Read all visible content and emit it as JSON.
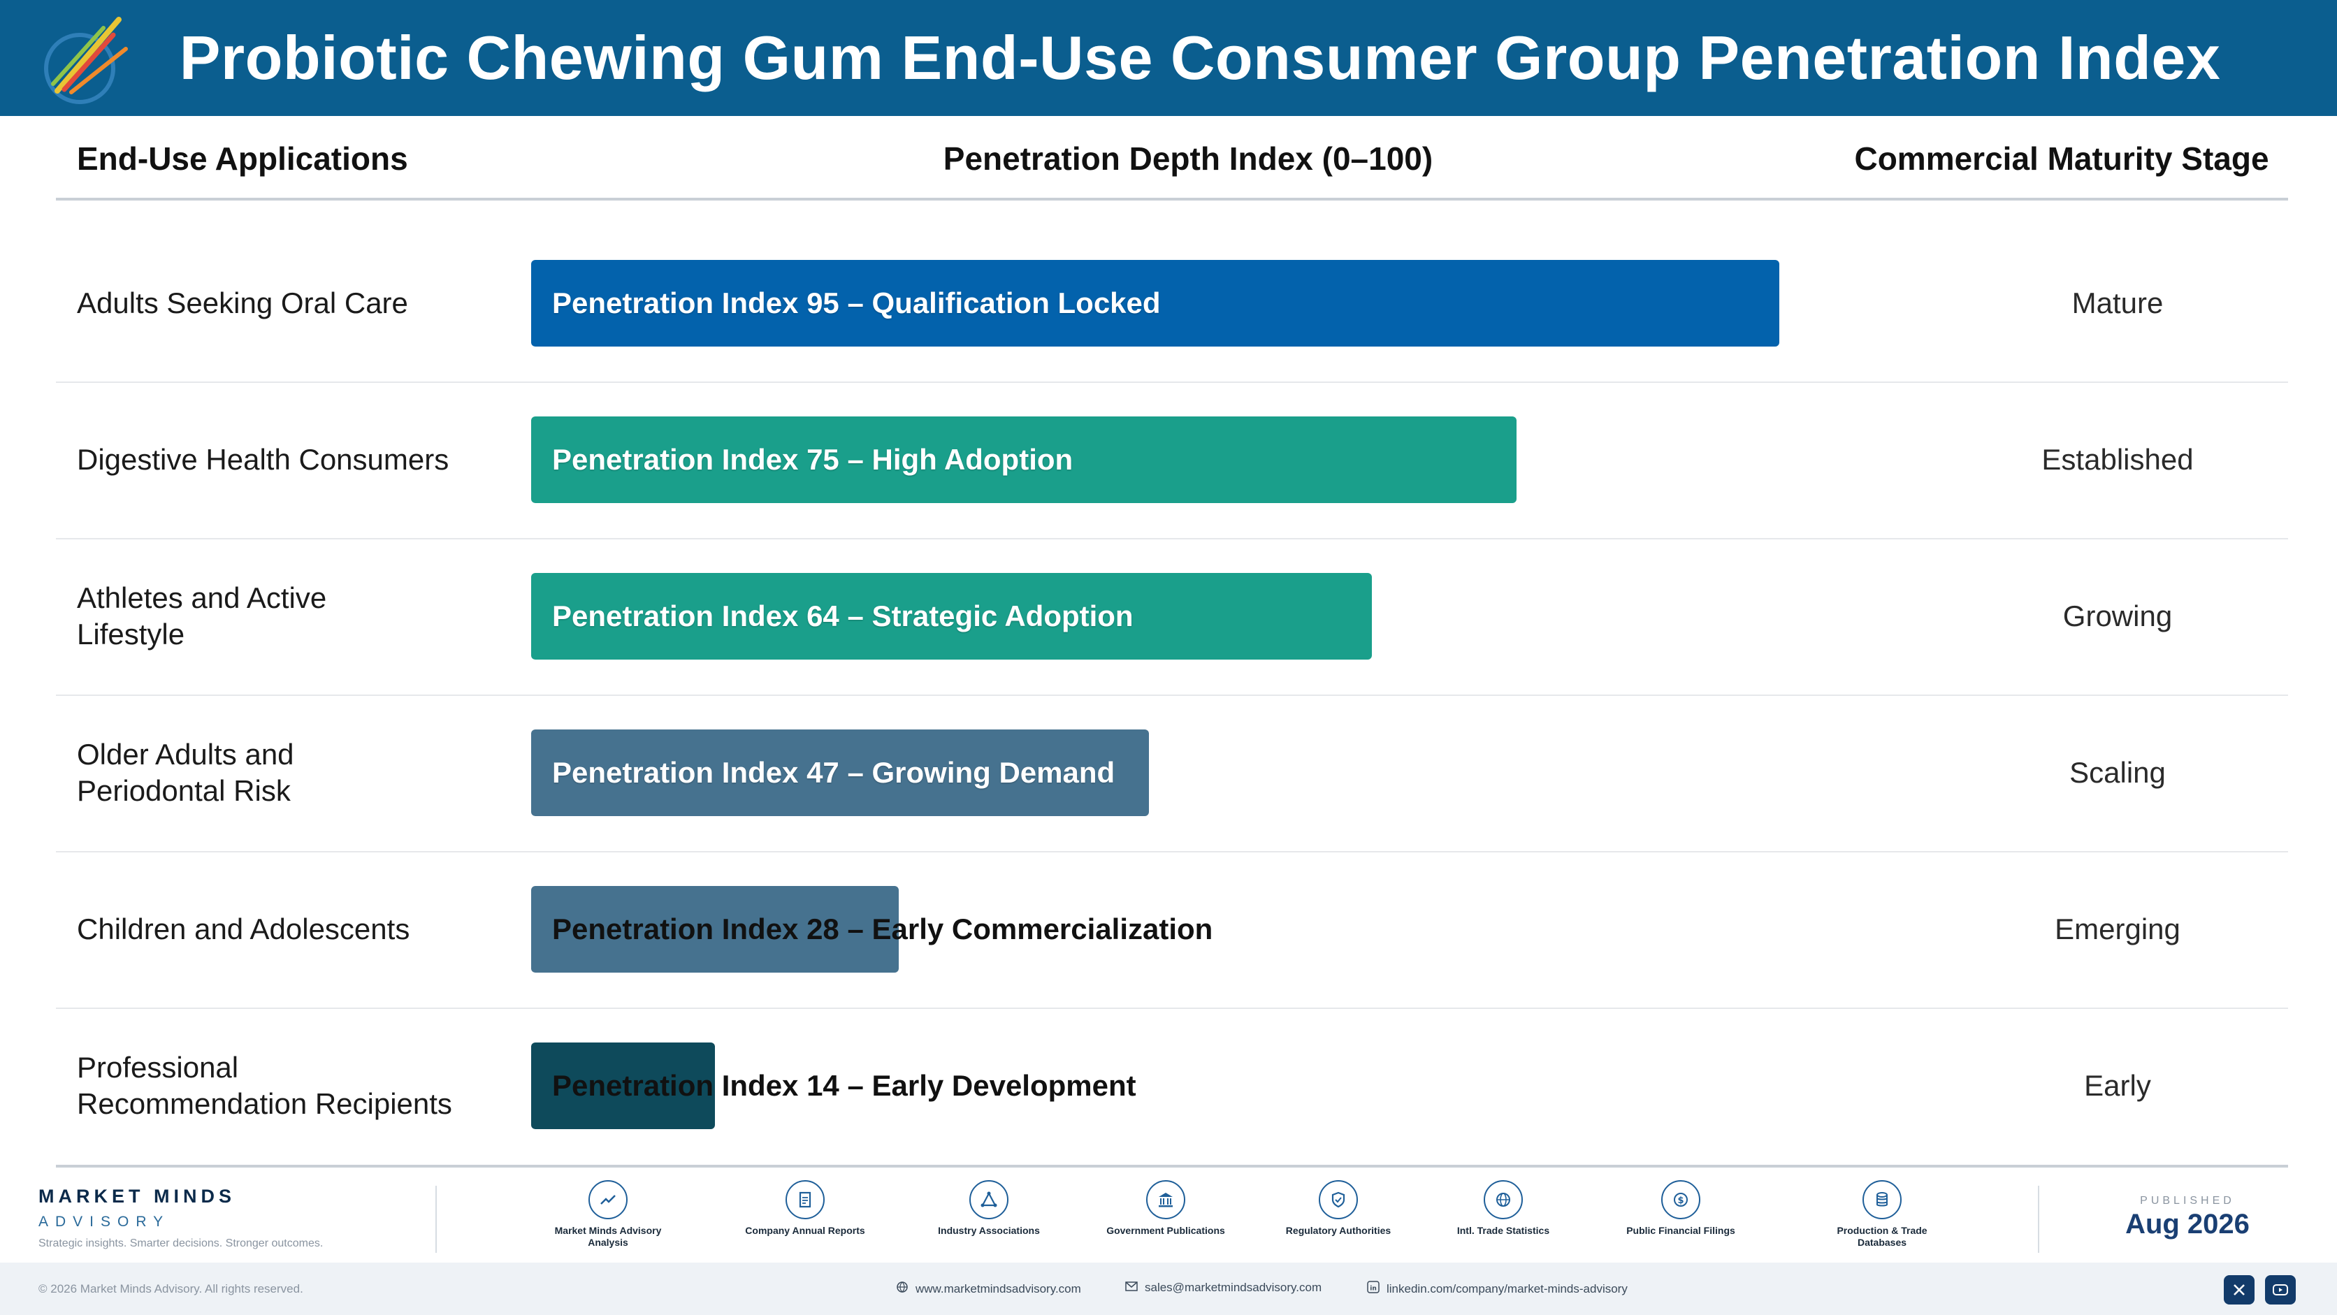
{
  "header": {
    "title": "Probiotic Chewing Gum End-Use Consumer Group Penetration Index"
  },
  "columns": {
    "applications": "End-Use Applications",
    "index": "Penetration Depth Index (0–100)",
    "stage": "Commercial Maturity Stage"
  },
  "chart_data": {
    "type": "bar",
    "orientation": "horizontal",
    "title": "Probiotic Chewing Gum End-Use Consumer Group Penetration Index",
    "xlabel": "Penetration Depth Index (0–100)",
    "xlim": [
      0,
      100
    ],
    "categories": [
      "Adults Seeking Oral Care",
      "Digestive Health Consumers",
      "Athletes and Active Lifestyle",
      "Older Adults and Periodontal Risk",
      "Children and Adolescents",
      "Professional Recommendation Recipients"
    ],
    "values": [
      95,
      75,
      64,
      47,
      28,
      14
    ],
    "bar_labels": [
      "Penetration Index 95 – Qualification Locked",
      "Penetration Index 75 – High Adoption",
      "Penetration Index 64 – Strategic Adoption",
      "Penetration Index 47 – Growing Demand",
      "Penetration Index 28 – Early Commercialization",
      "Penetration Index 14 – Early Development"
    ],
    "stages": [
      "Mature",
      "Established",
      "Growing",
      "Scaling",
      "Emerging",
      "Early"
    ],
    "colors": [
      "#0362ac",
      "#1a9f8b",
      "#1a9f8b",
      "#46728f",
      "#46728f",
      "#0e4a5b"
    ],
    "grid": false,
    "legend": "none"
  },
  "rows": [
    {
      "label": "Adults Seeking Oral Care"
    },
    {
      "label": "Digestive Health Consumers"
    },
    {
      "label": "Athletes and Active Lifestyle"
    },
    {
      "label": "Older Adults and Periodontal Risk"
    },
    {
      "label": "Children and Adolescents"
    },
    {
      "label": "Professional Recommendation Recipients"
    }
  ],
  "footer": {
    "brand_name": "MARKET MINDS",
    "brand_sub": "ADVISORY",
    "tagline": "Strategic insights. Smarter decisions. Stronger outcomes.",
    "sources": [
      {
        "label": "Market Minds Advisory Analysis",
        "icon": "trend-chart-icon"
      },
      {
        "label": "Company Annual Reports",
        "icon": "document-icon"
      },
      {
        "label": "Industry Associations",
        "icon": "network-icon"
      },
      {
        "label": "Government Publications",
        "icon": "government-building-icon"
      },
      {
        "label": "Regulatory Authorities",
        "icon": "shield-check-icon"
      },
      {
        "label": "Intl. Trade Statistics",
        "icon": "globe-icon"
      },
      {
        "label": "Public Financial Filings",
        "icon": "dollar-icon"
      },
      {
        "label": "Production & Trade Databases",
        "icon": "database-icon"
      }
    ],
    "published_label": "PUBLISHED",
    "published_date": "Aug 2026",
    "copyright": "© 2026 Market Minds Advisory. All rights reserved.",
    "website": "www.marketmindsadvisory.com",
    "email": "sales@marketmindsadvisory.com",
    "linkedin": "linkedin.com/company/market-minds-advisory"
  }
}
